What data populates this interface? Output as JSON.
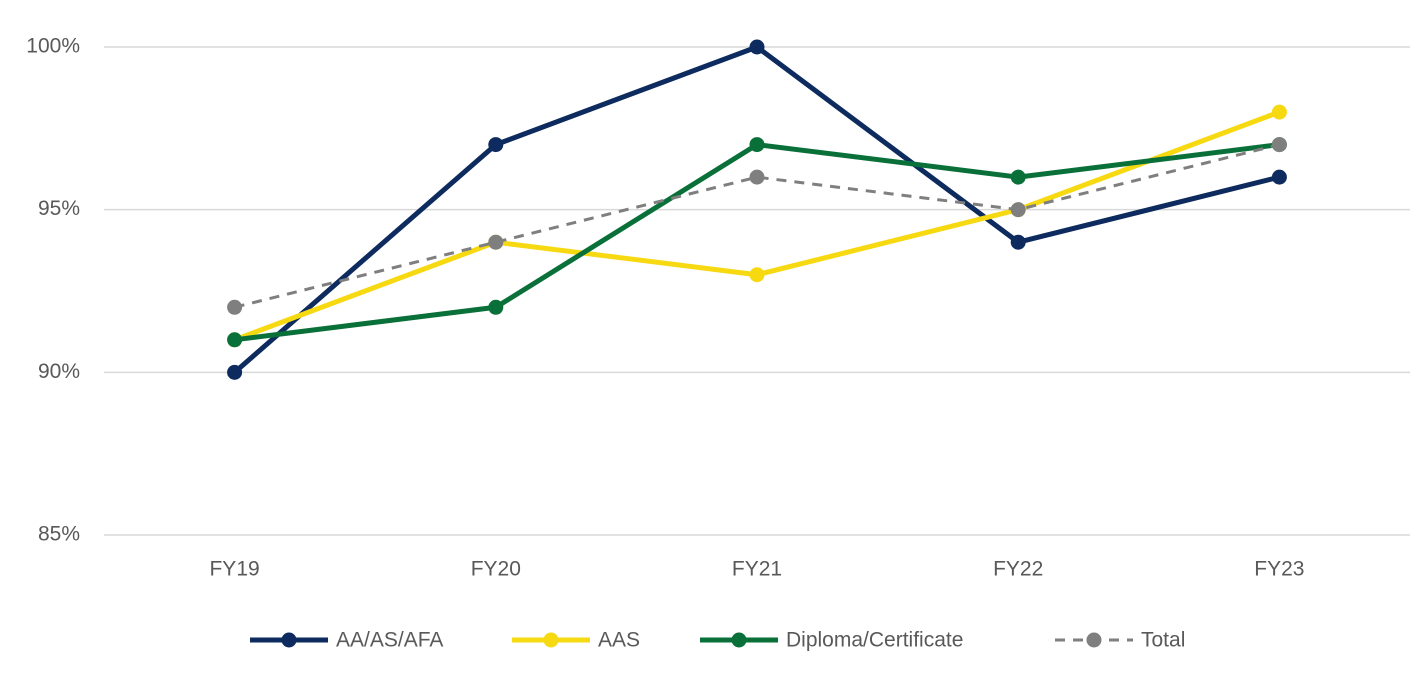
{
  "chart_data": {
    "type": "line",
    "categories": [
      "FY19",
      "FY20",
      "FY21",
      "FY22",
      "FY23"
    ],
    "series": [
      {
        "name": "AA/AS/AFA",
        "color": "#0d2b5e",
        "dashed": false,
        "values": [
          90,
          97,
          100,
          94,
          96
        ]
      },
      {
        "name": "AAS",
        "color": "#f7d912",
        "dashed": false,
        "values": [
          91,
          94,
          93,
          95,
          98
        ]
      },
      {
        "name": "Diploma/Certificate",
        "color": "#0a7039",
        "dashed": false,
        "values": [
          91,
          92,
          97,
          96,
          97
        ]
      },
      {
        "name": "Total",
        "color": "#7f7f7f",
        "dashed": true,
        "values": [
          92,
          94,
          96,
          95,
          97
        ]
      }
    ],
    "ylim": [
      85,
      100
    ],
    "yticks": [
      {
        "value": 85,
        "label": "85%"
      },
      {
        "value": 90,
        "label": "90%"
      },
      {
        "value": 95,
        "label": "95%"
      },
      {
        "value": 100,
        "label": "100%"
      }
    ],
    "grid": true,
    "legend": "bottom"
  }
}
